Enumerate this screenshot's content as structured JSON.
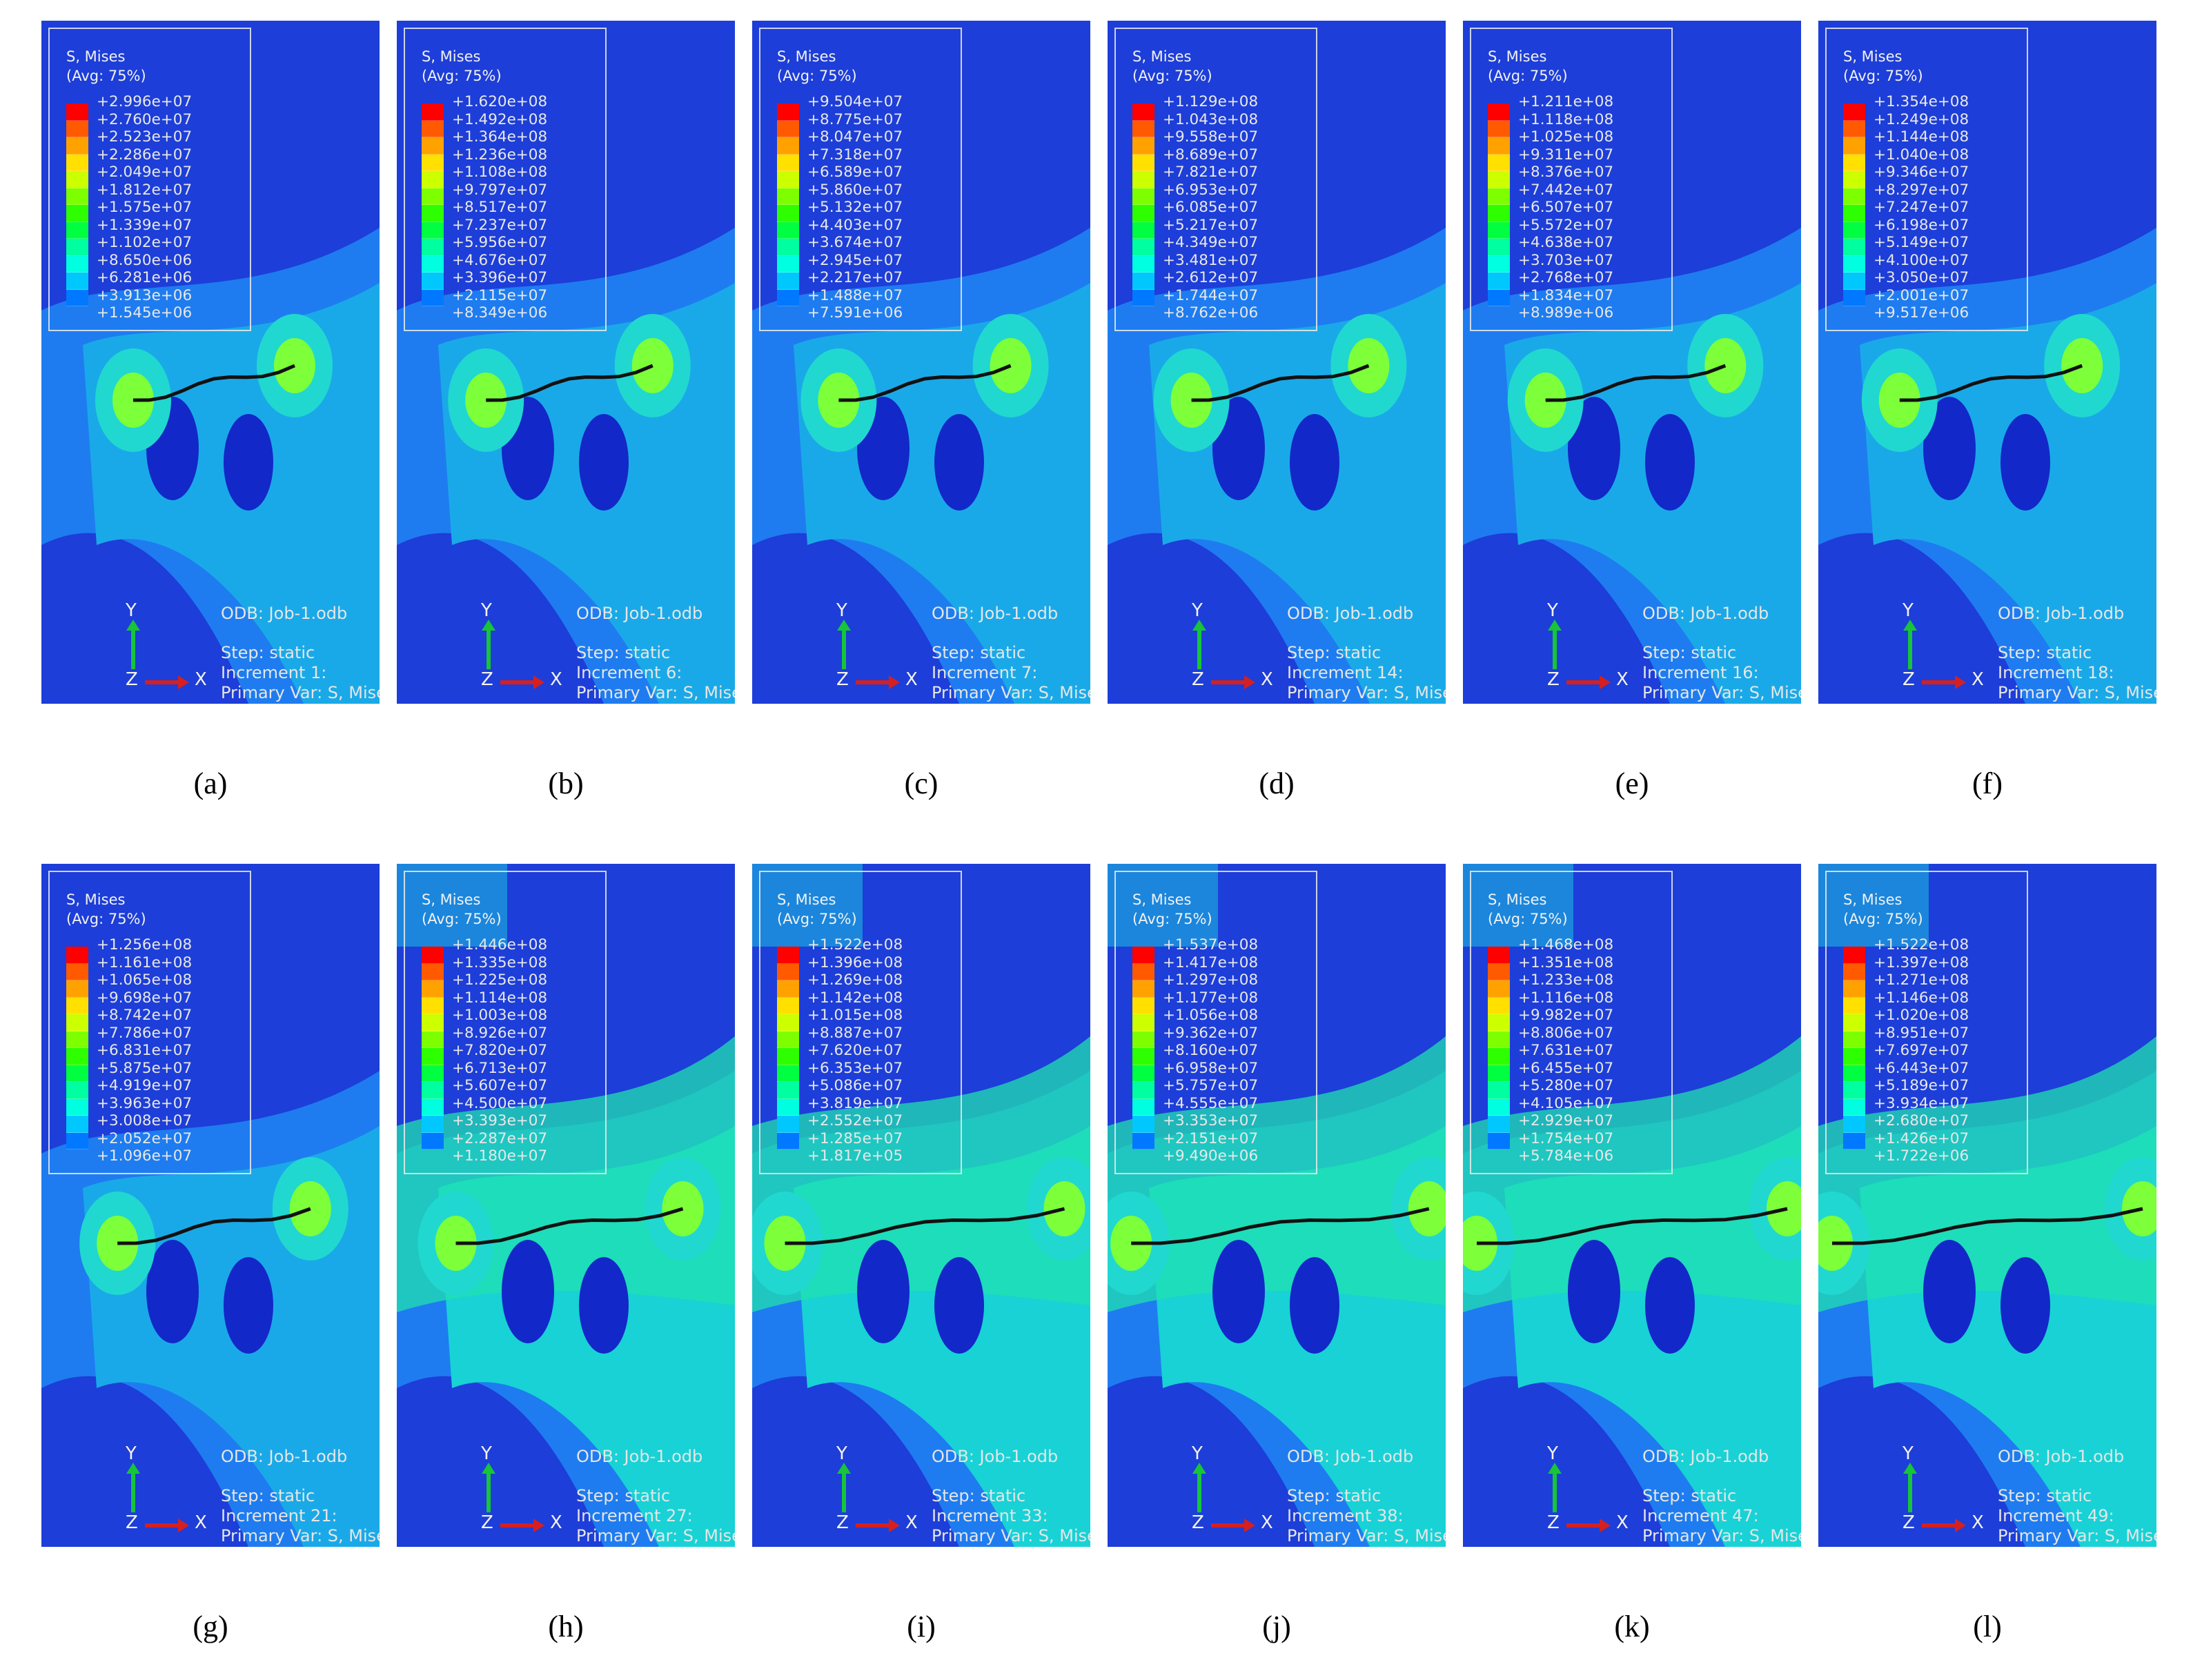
{
  "legend_title": "S, Mises",
  "legend_subtitle": "(Avg: 75%)",
  "odb_label": "ODB: Job-1.odb",
  "step_label": "Step: static",
  "increment_label": "Increment",
  "primary_var_label": "Primary Var: S, Mises",
  "axis_y": "Y",
  "axis_x": "X",
  "axis_z": "Z",
  "contour_colors": [
    "#ff0000",
    "#ff5a00",
    "#ffa200",
    "#ffe000",
    "#ccff00",
    "#7dff00",
    "#2eff00",
    "#00ff40",
    "#00ffa0",
    "#00ffe0",
    "#00c8ff",
    "#0078ff",
    "#0028ff"
  ],
  "panels": [
    {
      "caption": "(a)",
      "increment": "1:",
      "crack_length": 0.3,
      "values": [
        "+2.996e+07",
        "+2.760e+07",
        "+2.523e+07",
        "+2.286e+07",
        "+2.049e+07",
        "+1.812e+07",
        "+1.575e+07",
        "+1.339e+07",
        "+1.102e+07",
        "+8.650e+06",
        "+6.281e+06",
        "+3.913e+06",
        "+1.545e+06"
      ]
    },
    {
      "caption": "(b)",
      "increment": "6:",
      "crack_length": 0.32,
      "values": [
        "+1.620e+08",
        "+1.492e+08",
        "+1.364e+08",
        "+1.236e+08",
        "+1.108e+08",
        "+9.797e+07",
        "+8.517e+07",
        "+7.237e+07",
        "+5.956e+07",
        "+4.676e+07",
        "+3.396e+07",
        "+2.115e+07",
        "+8.349e+06"
      ]
    },
    {
      "caption": "(c)",
      "increment": "7:",
      "crack_length": 0.34,
      "values": [
        "+9.504e+07",
        "+8.775e+07",
        "+8.047e+07",
        "+7.318e+07",
        "+6.589e+07",
        "+5.860e+07",
        "+5.132e+07",
        "+4.403e+07",
        "+3.674e+07",
        "+2.945e+07",
        "+2.217e+07",
        "+1.488e+07",
        "+7.591e+06"
      ]
    },
    {
      "caption": "(d)",
      "increment": "14:",
      "crack_length": 0.36,
      "values": [
        "+1.129e+08",
        "+1.043e+08",
        "+9.558e+07",
        "+8.689e+07",
        "+7.821e+07",
        "+6.953e+07",
        "+6.085e+07",
        "+5.217e+07",
        "+4.349e+07",
        "+3.481e+07",
        "+2.612e+07",
        "+1.744e+07",
        "+8.762e+06"
      ]
    },
    {
      "caption": "(e)",
      "increment": "16:",
      "crack_length": 0.37,
      "values": [
        "+1.211e+08",
        "+1.118e+08",
        "+1.025e+08",
        "+9.311e+07",
        "+8.376e+07",
        "+7.442e+07",
        "+6.507e+07",
        "+5.572e+07",
        "+4.638e+07",
        "+3.703e+07",
        "+2.768e+07",
        "+1.834e+07",
        "+8.989e+06"
      ]
    },
    {
      "caption": "(f)",
      "increment": "18:",
      "crack_length": 0.38,
      "values": [
        "+1.354e+08",
        "+1.249e+08",
        "+1.144e+08",
        "+1.040e+08",
        "+9.346e+07",
        "+8.297e+07",
        "+7.247e+07",
        "+6.198e+07",
        "+5.149e+07",
        "+4.100e+07",
        "+3.050e+07",
        "+2.001e+07",
        "+9.517e+06"
      ]
    },
    {
      "caption": "(g)",
      "increment": "21:",
      "crack_length": 0.42,
      "values": [
        "+1.256e+08",
        "+1.161e+08",
        "+1.065e+08",
        "+9.698e+07",
        "+8.742e+07",
        "+7.786e+07",
        "+6.831e+07",
        "+5.875e+07",
        "+4.919e+07",
        "+3.963e+07",
        "+3.008e+07",
        "+2.052e+07",
        "+1.096e+07"
      ]
    },
    {
      "caption": "(h)",
      "increment": "27:",
      "crack_length": 0.55,
      "values": [
        "+1.446e+08",
        "+1.335e+08",
        "+1.225e+08",
        "+1.114e+08",
        "+1.003e+08",
        "+8.926e+07",
        "+7.820e+07",
        "+6.713e+07",
        "+5.607e+07",
        "+4.500e+07",
        "+3.393e+07",
        "+2.287e+07",
        "+1.180e+07"
      ]
    },
    {
      "caption": "(i)",
      "increment": "33:",
      "crack_length": 0.75,
      "values": [
        "+1.522e+08",
        "+1.396e+08",
        "+1.269e+08",
        "+1.142e+08",
        "+1.015e+08",
        "+8.887e+07",
        "+7.620e+07",
        "+6.353e+07",
        "+5.086e+07",
        "+3.819e+07",
        "+2.552e+07",
        "+1.285e+07",
        "+1.817e+05"
      ]
    },
    {
      "caption": "(j)",
      "increment": "38:",
      "crack_length": 0.82,
      "values": [
        "+1.537e+08",
        "+1.417e+08",
        "+1.297e+08",
        "+1.177e+08",
        "+1.056e+08",
        "+9.362e+07",
        "+8.160e+07",
        "+6.958e+07",
        "+5.757e+07",
        "+4.555e+07",
        "+3.353e+07",
        "+2.151e+07",
        "+9.490e+06"
      ]
    },
    {
      "caption": "(k)",
      "increment": "47:",
      "crack_length": 0.95,
      "values": [
        "+1.468e+08",
        "+1.351e+08",
        "+1.233e+08",
        "+1.116e+08",
        "+9.982e+07",
        "+8.806e+07",
        "+7.631e+07",
        "+6.455e+07",
        "+5.280e+07",
        "+4.105e+07",
        "+2.929e+07",
        "+1.754e+07",
        "+5.784e+06"
      ]
    },
    {
      "caption": "(l)",
      "increment": "49:",
      "crack_length": 0.98,
      "values": [
        "+1.522e+08",
        "+1.397e+08",
        "+1.271e+08",
        "+1.146e+08",
        "+1.020e+08",
        "+8.951e+07",
        "+7.697e+07",
        "+6.443e+07",
        "+5.189e+07",
        "+3.934e+07",
        "+2.680e+07",
        "+1.426e+07",
        "+1.722e+06"
      ]
    }
  ]
}
